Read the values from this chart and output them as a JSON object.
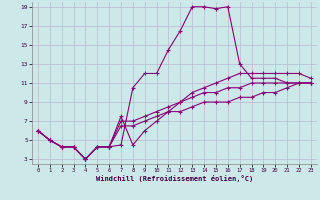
{
  "xlabel": "Windchill (Refroidissement éolien,°C)",
  "bg_color": "#cce8e8",
  "grid_color": "#b8b8d0",
  "line_color": "#880077",
  "xlim": [
    -0.5,
    23.5
  ],
  "ylim": [
    2.5,
    19.5
  ],
  "yticks": [
    3,
    5,
    7,
    9,
    11,
    13,
    15,
    17,
    19
  ],
  "xticks": [
    0,
    1,
    2,
    3,
    4,
    5,
    6,
    7,
    8,
    9,
    10,
    11,
    12,
    13,
    14,
    15,
    16,
    17,
    18,
    19,
    20,
    21,
    22,
    23
  ],
  "series": [
    {
      "x": [
        0,
        1,
        2,
        3,
        4,
        5,
        6,
        7,
        8,
        9,
        10,
        11,
        12,
        13,
        14,
        15,
        16,
        17,
        18,
        19,
        20,
        21,
        22,
        23
      ],
      "y": [
        6,
        5,
        4.3,
        4.3,
        3,
        4.3,
        4.3,
        4.5,
        10.5,
        12,
        12,
        14.5,
        16.5,
        19,
        19,
        18.8,
        19,
        13,
        11.5,
        11.5,
        11.5,
        11,
        11,
        11
      ]
    },
    {
      "x": [
        0,
        1,
        2,
        3,
        4,
        5,
        6,
        7,
        8,
        9,
        10,
        11,
        12,
        13,
        14,
        15,
        16,
        17,
        18,
        19,
        20,
        21,
        22,
        23
      ],
      "y": [
        6,
        5,
        4.3,
        4.3,
        3,
        4.3,
        4.3,
        7.5,
        4.5,
        6,
        7,
        8,
        9,
        10,
        10.5,
        11,
        11.5,
        12,
        12,
        12,
        12,
        12,
        12,
        11.5
      ]
    },
    {
      "x": [
        0,
        1,
        2,
        3,
        4,
        5,
        6,
        7,
        8,
        9,
        10,
        11,
        12,
        13,
        14,
        15,
        16,
        17,
        18,
        19,
        20,
        21,
        22,
        23
      ],
      "y": [
        6,
        5,
        4.3,
        4.3,
        3,
        4.3,
        4.3,
        7,
        7,
        7.5,
        8,
        8.5,
        9,
        9.5,
        10,
        10,
        10.5,
        10.5,
        11,
        11,
        11,
        11,
        11,
        11
      ]
    },
    {
      "x": [
        0,
        1,
        2,
        3,
        4,
        5,
        6,
        7,
        8,
        9,
        10,
        11,
        12,
        13,
        14,
        15,
        16,
        17,
        18,
        19,
        20,
        21,
        22,
        23
      ],
      "y": [
        6,
        5,
        4.3,
        4.3,
        3,
        4.3,
        4.3,
        6.5,
        6.5,
        7,
        7.5,
        8,
        8,
        8.5,
        9,
        9,
        9,
        9.5,
        9.5,
        10,
        10,
        10.5,
        11,
        11
      ]
    }
  ]
}
